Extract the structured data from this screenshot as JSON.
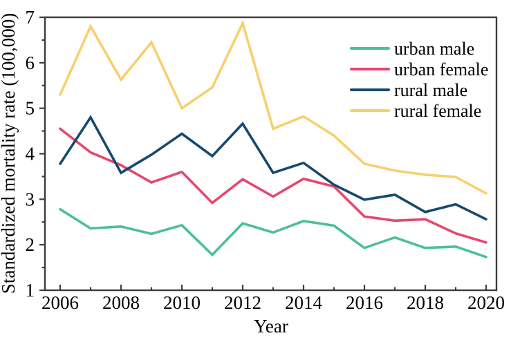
{
  "figure": {
    "background": "#ffffff",
    "axis_color": "#3c3c3c",
    "text_color": "#000000"
  },
  "chart_data": {
    "type": "line",
    "title": "",
    "xlabel": "Year",
    "ylabel": "Standardized mortality rate (100,000)",
    "x": [
      2006,
      2007,
      2008,
      2009,
      2010,
      2011,
      2012,
      2013,
      2014,
      2015,
      2016,
      2017,
      2018,
      2019,
      2020
    ],
    "x_major_ticks": [
      2006,
      2008,
      2010,
      2012,
      2014,
      2016,
      2018,
      2020
    ],
    "x_minor_step": 1,
    "ylim": [
      1,
      7
    ],
    "y_major_ticks": [
      1,
      2,
      3,
      4,
      5,
      6,
      7
    ],
    "y_minor_step": 0.5,
    "grid": false,
    "legend_position": "upper right inside",
    "series": [
      {
        "name": "urban male",
        "color": "#4DBE9B",
        "values": [
          2.78,
          2.36,
          2.4,
          2.24,
          2.43,
          1.78,
          2.47,
          2.27,
          2.52,
          2.42,
          1.93,
          2.16,
          1.93,
          1.96,
          1.73
        ]
      },
      {
        "name": "urban female",
        "color": "#E6476F",
        "values": [
          4.55,
          4.03,
          3.75,
          3.37,
          3.6,
          2.92,
          3.44,
          3.06,
          3.45,
          3.28,
          2.62,
          2.53,
          2.56,
          2.25,
          2.05
        ]
      },
      {
        "name": "rural male",
        "color": "#17496F",
        "values": [
          3.78,
          4.8,
          3.58,
          3.98,
          4.44,
          3.95,
          4.66,
          3.58,
          3.8,
          3.32,
          2.99,
          3.1,
          2.72,
          2.89,
          2.56
        ]
      },
      {
        "name": "rural female",
        "color": "#F7CF6E",
        "values": [
          5.3,
          6.8,
          5.63,
          6.45,
          5.0,
          5.46,
          6.87,
          4.55,
          4.82,
          4.4,
          3.78,
          3.63,
          3.54,
          3.49,
          3.13
        ]
      }
    ]
  }
}
